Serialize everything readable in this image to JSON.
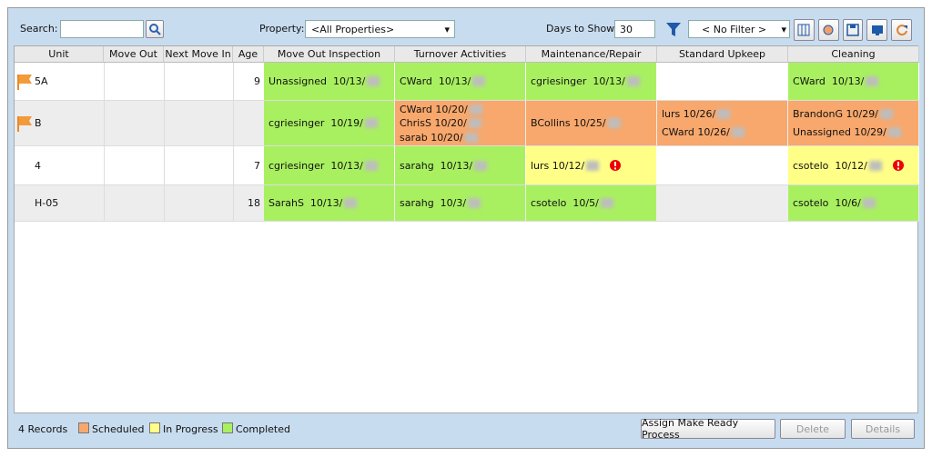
{
  "toolbar": {
    "search_label": "Search:",
    "property_label": "Property:",
    "property_value": "<All Properties>",
    "days_label": "Days to Show:",
    "days_value": 30,
    "filter_value": "< No Filter >"
  },
  "table": {
    "columns": [
      "Unit",
      "Move Out",
      "Next Move In",
      "Age",
      "Move Out Inspection",
      "Turnover Activities",
      "Maintenance/Repair",
      "Standard Upkeep",
      "Cleaning"
    ],
    "rows": [
      {
        "unit": "5A",
        "flag": true,
        "age": 9,
        "cells": [
          {
            "status": "Completed",
            "entries": [
              {
                "text": "Unassigned  10/13/",
                "alert": false
              }
            ]
          },
          {
            "status": "Completed",
            "entries": [
              {
                "text": "CWard  10/13/",
                "alert": false
              }
            ]
          },
          {
            "status": "Completed",
            "entries": [
              {
                "text": "cgriesinger  10/13/",
                "alert": false
              }
            ]
          },
          null,
          {
            "status": "Completed",
            "entries": [
              {
                "text": "CWard  10/13/",
                "alert": false
              }
            ]
          }
        ]
      },
      {
        "unit": "B",
        "flag": true,
        "age": null,
        "cells": [
          {
            "status": "Completed",
            "entries": [
              {
                "text": "cgriesinger  10/19/",
                "alert": false
              }
            ]
          },
          {
            "status": "Scheduled",
            "entries": [
              {
                "text": "CWard 10/20/",
                "alert": false
              },
              {
                "text": "ChrisS 10/20/",
                "alert": false
              },
              {
                "text": "sarab 10/20/",
                "alert": false
              }
            ]
          },
          {
            "status": "Scheduled",
            "entries": [
              {
                "text": "BCollins 10/25/",
                "alert": false
              }
            ]
          },
          {
            "status": "Scheduled",
            "entries": [
              {
                "text": "lurs 10/26/",
                "alert": false
              },
              {
                "text": "CWard 10/26/",
                "alert": false
              }
            ]
          },
          {
            "status": "Scheduled",
            "entries": [
              {
                "text": "BrandonG 10/29/",
                "alert": false
              },
              {
                "text": "Unassigned 10/29/",
                "alert": false
              }
            ]
          }
        ]
      },
      {
        "unit": "4",
        "flag": false,
        "age": 7,
        "cells": [
          {
            "status": "Completed",
            "entries": [
              {
                "text": "cgriesinger  10/13/",
                "alert": false
              }
            ]
          },
          {
            "status": "Completed",
            "entries": [
              {
                "text": "sarahg  10/13/",
                "alert": false
              }
            ]
          },
          {
            "status": "In Progress",
            "entries": [
              {
                "text": "lurs 10/12/",
                "alert": true
              }
            ]
          },
          null,
          {
            "status": "In Progress",
            "entries": [
              {
                "text": "csotelo  10/12/",
                "alert": true
              }
            ]
          }
        ]
      },
      {
        "unit": "H-05",
        "flag": false,
        "age": 18,
        "cells": [
          {
            "status": "Completed",
            "entries": [
              {
                "text": "SarahS  10/13/",
                "alert": false
              }
            ]
          },
          {
            "status": "Completed",
            "entries": [
              {
                "text": "sarahg  10/3/",
                "alert": false
              }
            ]
          },
          {
            "status": "Completed",
            "entries": [
              {
                "text": "csotelo  10/5/",
                "alert": false
              }
            ]
          },
          null,
          {
            "status": "Completed",
            "entries": [
              {
                "text": "csotelo  10/6/",
                "alert": false
              }
            ]
          }
        ]
      }
    ]
  },
  "footer": {
    "records": "4 Records",
    "legend": [
      {
        "label": "Scheduled",
        "color": "#f8a86c"
      },
      {
        "label": "In Progress",
        "color": "#ffff88"
      },
      {
        "label": "Completed",
        "color": "#a9f061"
      }
    ],
    "buttons": [
      {
        "label": "Assign Make Ready Process",
        "enabled": true
      },
      {
        "label": "Delete",
        "enabled": false
      },
      {
        "label": "Details",
        "enabled": false
      }
    ]
  }
}
